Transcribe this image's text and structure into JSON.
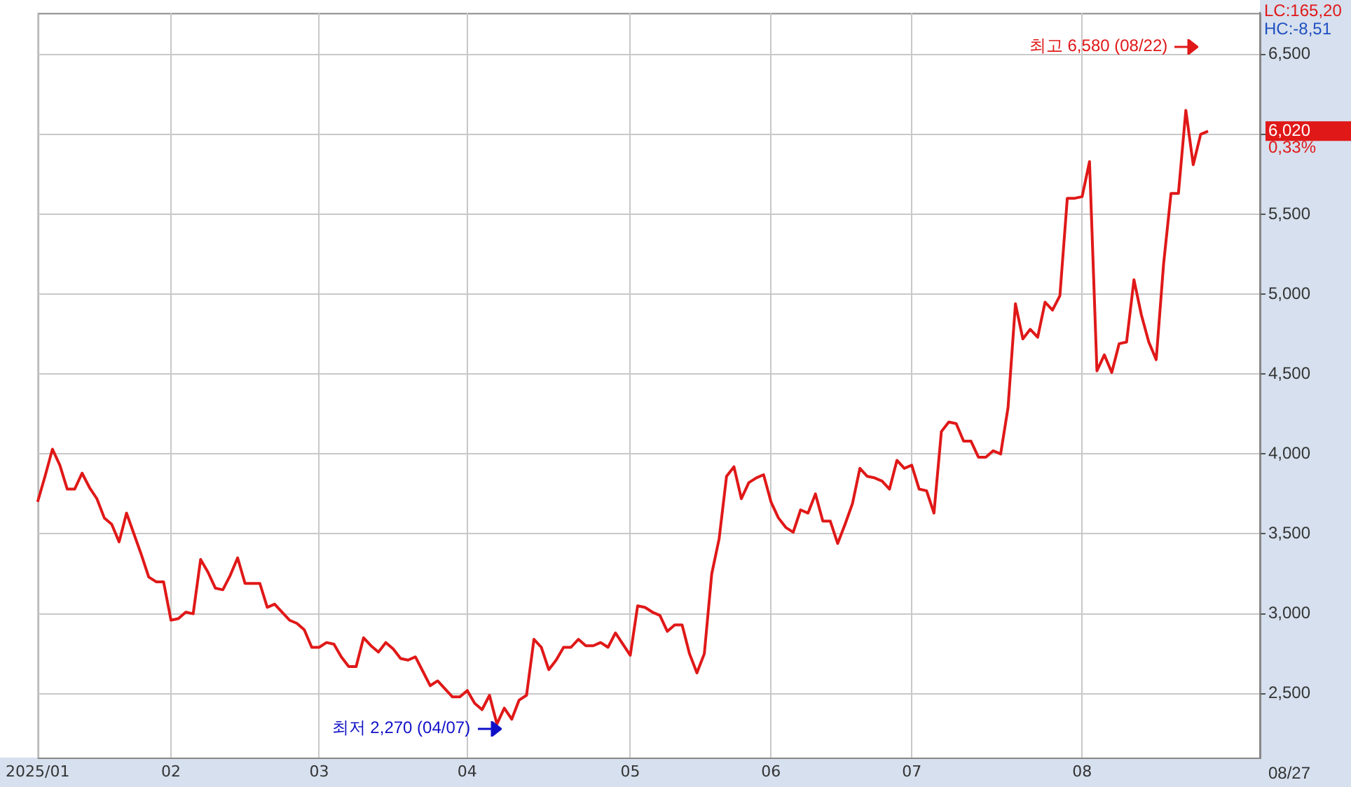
{
  "chart_data": {
    "type": "line",
    "categories": [
      "2025/01",
      null,
      null,
      null,
      null,
      null,
      null,
      null,
      null,
      null,
      null,
      null,
      null,
      null,
      null,
      null,
      null,
      null,
      "02",
      null,
      null,
      null,
      null,
      null,
      null,
      null,
      null,
      null,
      null,
      null,
      null,
      null,
      null,
      null,
      null,
      null,
      null,
      null,
      "03",
      null,
      null,
      null,
      null,
      null,
      null,
      null,
      null,
      null,
      null,
      null,
      null,
      null,
      null,
      null,
      null,
      null,
      null,
      null,
      "04",
      null,
      null,
      null,
      null,
      null,
      null,
      null,
      null,
      null,
      null,
      null,
      null,
      null,
      null,
      null,
      null,
      null,
      null,
      null,
      null,
      null,
      "05",
      null,
      null,
      null,
      null,
      null,
      null,
      null,
      null,
      null,
      null,
      null,
      null,
      null,
      null,
      null,
      null,
      null,
      null,
      "06",
      null,
      null,
      null,
      null,
      null,
      null,
      null,
      null,
      null,
      null,
      null,
      null,
      null,
      null,
      null,
      null,
      null,
      null,
      "07",
      null,
      null,
      null,
      null,
      null,
      null,
      null,
      null,
      null,
      null,
      null,
      null,
      null,
      null,
      null,
      null,
      null,
      null,
      null,
      null,
      null,
      null,
      "08",
      null,
      null,
      null,
      null,
      null,
      null,
      null,
      null,
      null,
      null,
      null,
      null,
      null,
      null,
      null,
      null,
      null,
      null,
      null,
      null,
      null,
      null,
      null,
      null
    ],
    "series": [
      {
        "color": "#e01818",
        "values": [
          3700,
          3860,
          4030,
          3930,
          3780,
          3780,
          3880,
          3790,
          3720,
          3600,
          3560,
          3450,
          3630,
          3500,
          3370,
          3230,
          3200,
          3200,
          2960,
          2970,
          3010,
          3000,
          3340,
          3260,
          3160,
          3150,
          3240,
          3350,
          3190,
          3190,
          3190,
          3040,
          3060,
          3010,
          2960,
          2940,
          2900,
          2790,
          2790,
          2820,
          2810,
          2730,
          2670,
          2670,
          2850,
          2800,
          2760,
          2820,
          2780,
          2720,
          2710,
          2730,
          2640,
          2550,
          2580,
          2530,
          2480,
          2480,
          2520,
          2440,
          2400,
          2490,
          2310,
          2410,
          2340,
          2460,
          2490,
          2840,
          2790,
          2650,
          2710,
          2790,
          2790,
          2840,
          2800,
          2800,
          2820,
          2790,
          2880,
          2810,
          2740,
          3050,
          3040,
          3010,
          2990,
          2890,
          2930,
          2930,
          2750,
          2630,
          2750,
          3250,
          3470,
          3860,
          3920,
          3720,
          3820,
          3850,
          3870,
          3700,
          3600,
          3540,
          3510,
          3650,
          3630,
          3750,
          3580,
          3580,
          3440,
          3560,
          3690,
          3910,
          3860,
          3850,
          3830,
          3780,
          3960,
          3910,
          3930,
          3780,
          3770,
          3630,
          4140,
          4200,
          4190,
          4080,
          4080,
          3980,
          3980,
          4020,
          4000,
          4290,
          4940,
          4720,
          4780,
          4730,
          4950,
          4900,
          4990,
          5600,
          5600,
          5610,
          5830,
          4520,
          4620,
          4510,
          4690,
          4700,
          5090,
          4870,
          4700,
          4590,
          5190,
          5630,
          5630,
          6150,
          5810,
          6000,
          6020,
          null,
          null,
          null,
          null,
          null,
          null,
          null
        ]
      }
    ],
    "ylim": [
      2100,
      6760
    ],
    "yticks": [
      {
        "value": 2500,
        "label": "2,500"
      },
      {
        "value": 3000,
        "label": "3,000"
      },
      {
        "value": 3500,
        "label": "3,500"
      },
      {
        "value": 4000,
        "label": "4,000"
      },
      {
        "value": 4500,
        "label": "4,500"
      },
      {
        "value": 5000,
        "label": "5,000"
      },
      {
        "value": 5500,
        "label": "5,500"
      },
      {
        "value": 6000,
        "label": null
      },
      {
        "value": 6500,
        "label": "6,500"
      }
    ],
    "grid": true,
    "legend": false,
    "marker": "none",
    "line_style": "solid",
    "annotations": [
      "LC:165,20",
      "HC:-8,51",
      "최고 6,580 (08/22)",
      "최저 2,270 (04/07)",
      "6,020",
      "0,33%",
      "08/27"
    ]
  }
}
